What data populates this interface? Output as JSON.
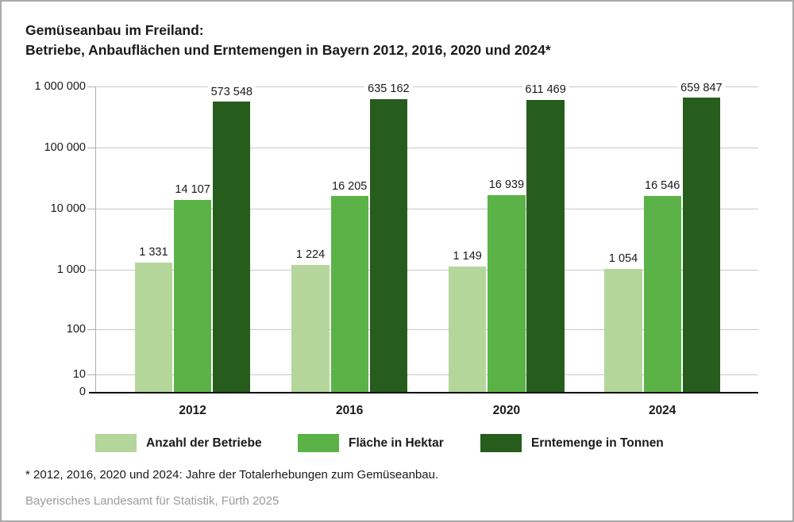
{
  "title": {
    "line1": "Gemüseanbau im Freiland:",
    "line2": "Betriebe, Anbauflächen und Erntemengen in Bayern 2012, 2016, 2020 und 2024*"
  },
  "chart_data": {
    "type": "bar",
    "scale": "logarithmic",
    "categories": [
      "2012",
      "2016",
      "2020",
      "2024"
    ],
    "series": [
      {
        "name": "Anzahl der Betriebe",
        "color": "#b5d69b",
        "values": [
          1331,
          1224,
          1149,
          1054
        ],
        "labels": [
          "1 331",
          "1 224",
          "1 149",
          "1 054"
        ]
      },
      {
        "name": "Fläche in Hektar",
        "color": "#5bb347",
        "values": [
          14107,
          16205,
          16939,
          16546
        ],
        "labels": [
          "14 107",
          "16 205",
          "16 939",
          "16 546"
        ]
      },
      {
        "name": "Erntemenge in Tonnen",
        "color": "#265d1d",
        "values": [
          573548,
          635162,
          611469,
          659847
        ],
        "labels": [
          "573 548",
          "635 162",
          "611 469",
          "659 847"
        ]
      }
    ],
    "y_axis": {
      "tick_labels": [
        "1 000 000",
        "100 000",
        "10 000",
        "1 000",
        "100",
        "10",
        "0"
      ],
      "tick_values": [
        1000000,
        100000,
        10000,
        1000,
        100,
        10,
        0
      ]
    },
    "ylim": [
      0,
      1000000
    ],
    "grid": true,
    "legend_position": "bottom"
  },
  "footnote": "* 2012, 2016, 2020 und 2024: Jahre der Totalerhebungen zum Gemüseanbau.",
  "source": "Bayerisches Landesamt für Statistik, Fürth 2025"
}
